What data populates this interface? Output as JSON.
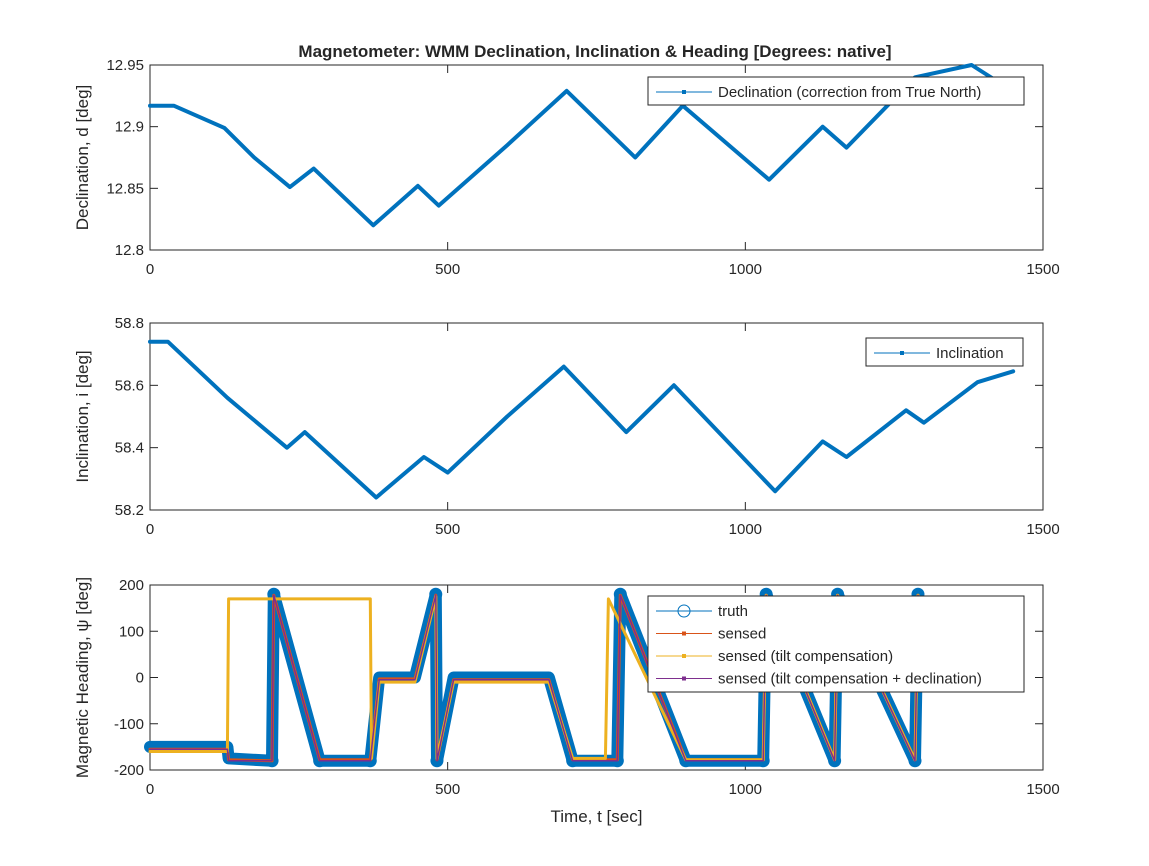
{
  "figure": {
    "title": "Magnetometer: WMM Declination, Inclination & Heading [Degrees: native]"
  },
  "chart_data": [
    {
      "type": "line",
      "ylabel": "Declination, d [deg]",
      "xlabel": "",
      "xlim": [
        0,
        1500
      ],
      "ylim": [
        12.8,
        12.95
      ],
      "xticks": [
        "0",
        "500",
        "1000",
        "1500"
      ],
      "yticks": [
        "12.8",
        "12.85",
        "12.9",
        "12.95"
      ],
      "legend_position": "top-right",
      "series": [
        {
          "name": "Declination (correction from True North)",
          "color": "#0072BD",
          "x": [
            0,
            40,
            125,
            175,
            235,
            275,
            375,
            450,
            485,
            600,
            700,
            815,
            895,
            1040,
            1130,
            1170,
            1285,
            1380,
            1445
          ],
          "y": [
            12.917,
            12.917,
            12.899,
            12.875,
            12.851,
            12.866,
            12.82,
            12.852,
            12.836,
            12.885,
            12.929,
            12.875,
            12.917,
            12.857,
            12.9,
            12.883,
            12.94,
            12.95,
            12.93
          ]
        }
      ]
    },
    {
      "type": "line",
      "ylabel": "Inclination, i [deg]",
      "xlabel": "",
      "xlim": [
        0,
        1500
      ],
      "ylim": [
        58.2,
        58.8
      ],
      "xticks": [
        "0",
        "500",
        "1000",
        "1500"
      ],
      "yticks": [
        "58.2",
        "58.4",
        "58.6",
        "58.8"
      ],
      "legend_position": "top-right",
      "series": [
        {
          "name": "Inclination",
          "color": "#0072BD",
          "x": [
            0,
            30,
            130,
            230,
            260,
            380,
            460,
            500,
            600,
            695,
            800,
            880,
            1050,
            1130,
            1170,
            1270,
            1300,
            1390,
            1450
          ],
          "y": [
            58.74,
            58.74,
            58.56,
            58.4,
            58.45,
            58.24,
            58.37,
            58.32,
            58.5,
            58.66,
            58.45,
            58.6,
            58.26,
            58.42,
            58.37,
            58.52,
            58.48,
            58.61,
            58.645
          ]
        }
      ]
    },
    {
      "type": "line",
      "ylabel": "Magnetic Heading, ψ [deg]",
      "xlabel": "Time, t [sec]",
      "xlim": [
        0,
        1500
      ],
      "ylim": [
        -200,
        200
      ],
      "xticks": [
        "0",
        "500",
        "1000",
        "1500"
      ],
      "yticks": [
        "-200",
        "-100",
        "0",
        "100",
        "200"
      ],
      "legend_position": "top-right",
      "series": [
        {
          "name": "truth",
          "color": "#0072BD",
          "x": [
            0,
            130,
            132,
            205,
            208,
            285,
            370,
            385,
            445,
            480,
            482,
            510,
            670,
            710,
            785,
            790,
            900,
            1030,
            1035,
            1150,
            1155,
            1285,
            1290
          ],
          "y": [
            -150,
            -150,
            -175,
            -180,
            180,
            -180,
            -180,
            0,
            0,
            180,
            -180,
            0,
            0,
            -180,
            -180,
            180,
            -180,
            -180,
            180,
            -180,
            180,
            -180,
            180
          ]
        },
        {
          "name": "sensed",
          "color": "#D95319",
          "x": [
            0,
            130,
            132,
            205,
            208,
            285,
            370,
            385,
            445,
            480,
            482,
            510,
            670,
            710,
            785,
            790,
            900,
            1030,
            1035,
            1150,
            1155,
            1285,
            1290
          ],
          "y": [
            -155,
            -155,
            -178,
            -180,
            178,
            -178,
            -178,
            -3,
            -3,
            178,
            -178,
            -5,
            -5,
            -178,
            -178,
            178,
            -178,
            -178,
            178,
            -178,
            178,
            -178,
            178
          ]
        },
        {
          "name": "sensed (tilt compensation)",
          "color": "#EDB120",
          "x": [
            0,
            130,
            132,
            370,
            372,
            385,
            445,
            480,
            482,
            510,
            670,
            710,
            765,
            770,
            900,
            1030,
            1035,
            1150,
            1155,
            1285,
            1290
          ],
          "y": [
            -160,
            -160,
            170,
            170,
            -175,
            -10,
            -10,
            175,
            -175,
            -10,
            -10,
            -175,
            -175,
            170,
            -178,
            -178,
            178,
            -178,
            178,
            -178,
            178
          ]
        },
        {
          "name": "sensed (tilt compensation + declination)",
          "color": "#7E2F8E",
          "x": [
            0,
            130,
            132,
            205,
            208,
            285,
            370,
            385,
            445,
            480,
            482,
            510,
            670,
            710,
            785,
            790,
            900,
            1030,
            1035,
            1150,
            1155,
            1285,
            1290
          ],
          "y": [
            -155,
            -155,
            -180,
            -180,
            178,
            -180,
            -180,
            -5,
            -5,
            178,
            -180,
            -5,
            -5,
            -180,
            -180,
            178,
            -180,
            -180,
            178,
            -180,
            178,
            -180,
            178
          ]
        }
      ]
    }
  ]
}
